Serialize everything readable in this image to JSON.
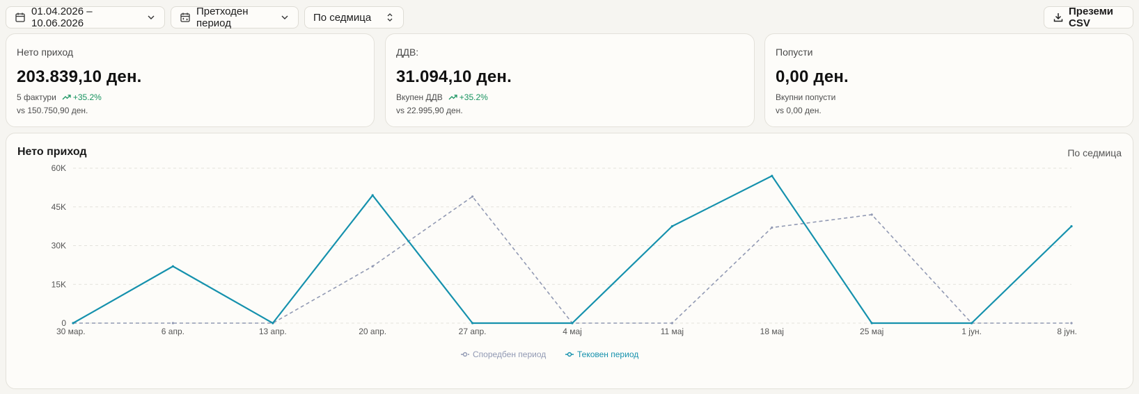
{
  "toolbar": {
    "date_range": "01.04.2026 – 10.06.2026",
    "compare": "Претходен период",
    "granularity": "По седмица",
    "export": "Преземи CSV"
  },
  "kpis": [
    {
      "title": "Нето приход",
      "value": "203.839,10 ден.",
      "sub": "5 фактури",
      "delta": "+35.2%",
      "vs": "vs 150.750,90 ден."
    },
    {
      "title": "ДДВ:",
      "value": "31.094,10 ден.",
      "sub": "Вкупен ДДВ",
      "delta": "+35.2%",
      "vs": "vs 22.995,90 ден."
    },
    {
      "title": "Попусти",
      "value": "0,00 ден.",
      "sub": "Вкупни попусти",
      "delta": "",
      "vs": "vs 0,00 ден."
    }
  ],
  "colors": {
    "current": "#1591ad",
    "previous": "#9199b3",
    "positive": "#17935f",
    "grid": "#e4e2dc"
  },
  "icons": {
    "date_range": "calendar-icon",
    "compare": "calendar-compare-icon",
    "dropdown": "chevron-down-icon",
    "select": "chevron-up-down-icon",
    "export": "download-icon",
    "delta": "trending-up-icon"
  },
  "chart_data": {
    "type": "line",
    "title": "Нето приход",
    "granularity_label": "По седмица",
    "categories": [
      "30 мар.",
      "6 апр.",
      "13 апр.",
      "20 апр.",
      "27 апр.",
      "4 мај",
      "11 мај",
      "18 мај",
      "25 мај",
      "1 јун.",
      "8 јун."
    ],
    "ylim": [
      0,
      60000
    ],
    "yticks": [
      0,
      15000,
      30000,
      45000,
      60000
    ],
    "ytick_labels": [
      "0",
      "15K",
      "30K",
      "45K",
      "60K"
    ],
    "grid": true,
    "legend_position": "bottom",
    "series": [
      {
        "name": "Споредбен период",
        "style": "dashed",
        "values": [
          0,
          0,
          0,
          22000,
          49000,
          0,
          0,
          37000,
          42000,
          0,
          0
        ]
      },
      {
        "name": "Тековен период",
        "style": "solid",
        "values": [
          0,
          22000,
          0,
          49500,
          0,
          0,
          37500,
          57000,
          0,
          0,
          37500
        ]
      }
    ]
  }
}
